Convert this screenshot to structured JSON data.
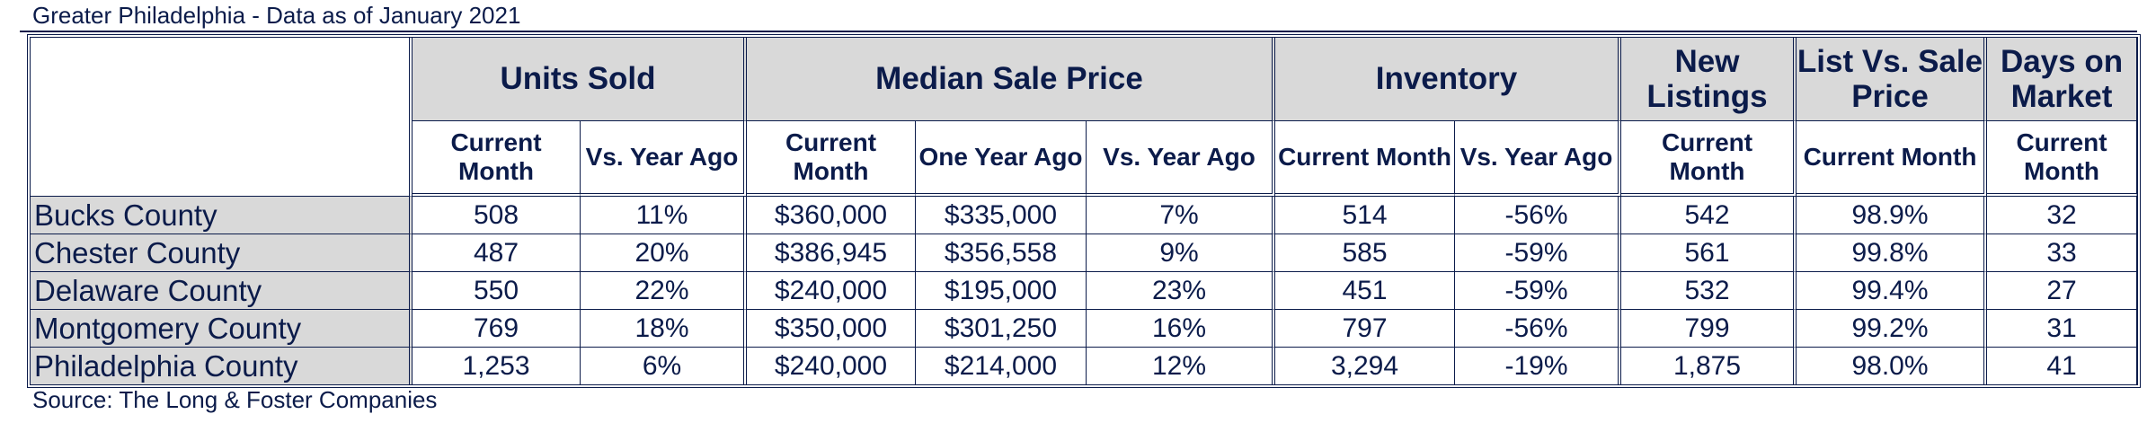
{
  "title": "Greater Philadelphia - Data as of January 2021",
  "source": "Source: The Long & Foster Companies",
  "groups": {
    "units_sold": "Units Sold",
    "median_sale_price": "Median Sale Price",
    "inventory": "Inventory",
    "new_listings": "New Listings",
    "list_vs_sale": "List Vs. Sale Price",
    "days_on_market": "Days on Market"
  },
  "subheaders": {
    "units_current": "Current Month",
    "units_vs_year": "Vs. Year Ago",
    "msp_current": "Current Month",
    "msp_one_year": "One Year Ago",
    "msp_vs_year": "Vs. Year Ago",
    "inv_current": "Current Month",
    "inv_vs_year": "Vs. Year Ago",
    "nl_current": "Current Month",
    "lvs_current": "Current Month",
    "dom_current": "Current Month"
  },
  "rows": [
    {
      "county": "Bucks County",
      "units_current": "508",
      "units_vs_year": "11%",
      "msp_current": "$360,000",
      "msp_one_year": "$335,000",
      "msp_vs_year": "7%",
      "inv_current": "514",
      "inv_vs_year": "-56%",
      "nl_current": "542",
      "lvs_current": "98.9%",
      "dom_current": "32"
    },
    {
      "county": "Chester County",
      "units_current": "487",
      "units_vs_year": "20%",
      "msp_current": "$386,945",
      "msp_one_year": "$356,558",
      "msp_vs_year": "9%",
      "inv_current": "585",
      "inv_vs_year": "-59%",
      "nl_current": "561",
      "lvs_current": "99.8%",
      "dom_current": "33"
    },
    {
      "county": "Delaware County",
      "units_current": "550",
      "units_vs_year": "22%",
      "msp_current": "$240,000",
      "msp_one_year": "$195,000",
      "msp_vs_year": "23%",
      "inv_current": "451",
      "inv_vs_year": "-59%",
      "nl_current": "532",
      "lvs_current": "99.4%",
      "dom_current": "27"
    },
    {
      "county": "Montgomery County",
      "units_current": "769",
      "units_vs_year": "18%",
      "msp_current": "$350,000",
      "msp_one_year": "$301,250",
      "msp_vs_year": "16%",
      "inv_current": "797",
      "inv_vs_year": "-56%",
      "nl_current": "799",
      "lvs_current": "99.2%",
      "dom_current": "31"
    },
    {
      "county": "Philadelphia County",
      "units_current": "1,253",
      "units_vs_year": "6%",
      "msp_current": "$240,000",
      "msp_one_year": "$214,000",
      "msp_vs_year": "12%",
      "inv_current": "3,294",
      "inv_vs_year": "-19%",
      "nl_current": "1,875",
      "lvs_current": "98.0%",
      "dom_current": "41"
    }
  ]
}
